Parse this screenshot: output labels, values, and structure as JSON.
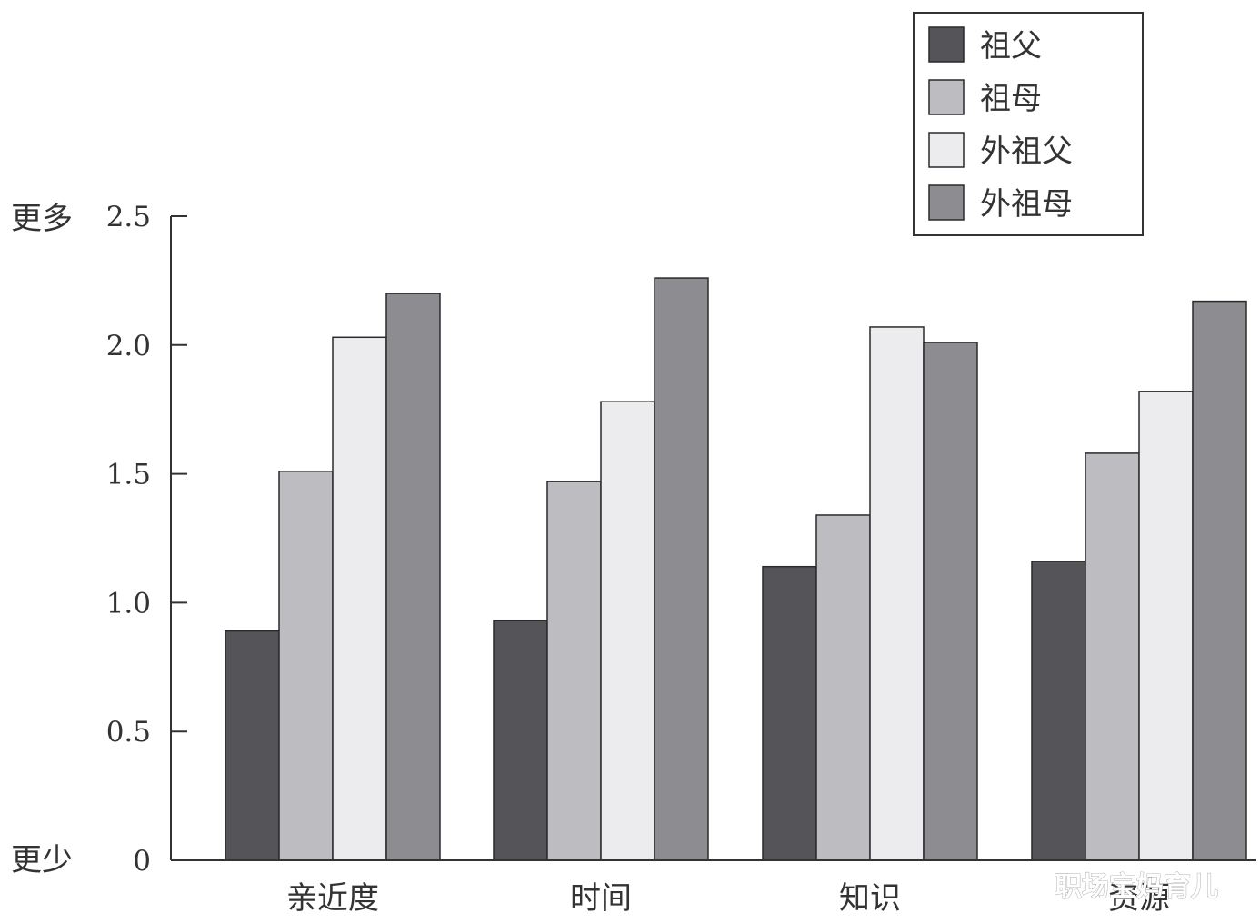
{
  "chart_data": {
    "type": "bar",
    "categories": [
      "亲近度",
      "时间",
      "知识",
      "资源"
    ],
    "series": [
      {
        "name": "祖父",
        "color": "#555559",
        "values": [
          0.89,
          0.93,
          1.14,
          1.16
        ]
      },
      {
        "name": "祖母",
        "color": "#bdbdc1",
        "values": [
          1.51,
          1.47,
          1.34,
          1.58
        ]
      },
      {
        "name": "外祖父",
        "color": "#ececee",
        "values": [
          2.03,
          1.78,
          2.07,
          1.82
        ]
      },
      {
        "name": "外祖母",
        "color": "#8d8d91",
        "values": [
          2.2,
          2.26,
          2.01,
          2.17
        ]
      }
    ],
    "ylim": [
      0,
      2.5
    ],
    "yticks": [
      "0",
      "0.5",
      "1.0",
      "1.5",
      "2.0",
      "2.5"
    ],
    "y_top_label": "更多",
    "y_bottom_label": "更少",
    "title": "",
    "xlabel": "",
    "ylabel": "",
    "legend_position": "top-right",
    "grid": false
  },
  "watermark": "职场宝妈育儿"
}
